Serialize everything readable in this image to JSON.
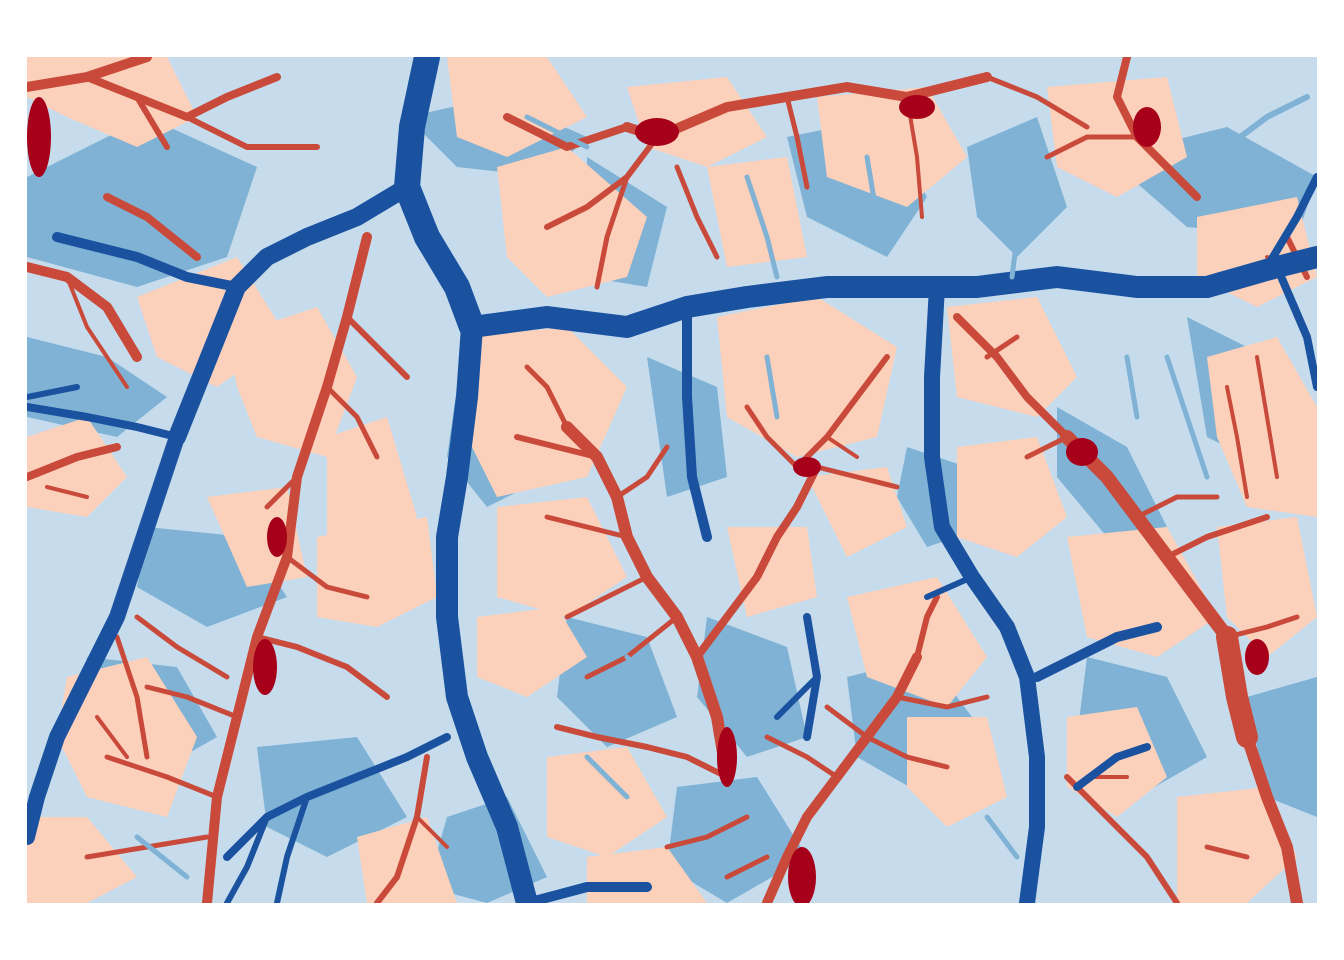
{
  "map": {
    "kind": "classified raster of valleys and ridges",
    "palette": {
      "light_blue": "#c6dcec",
      "mid_blue": "#7fb2d5",
      "dark_blue": "#1a52a0",
      "peach": "#fbd1bb",
      "red": "#c94a3a",
      "dark_red": "#a6001a"
    },
    "legend": "none",
    "title": ""
  }
}
